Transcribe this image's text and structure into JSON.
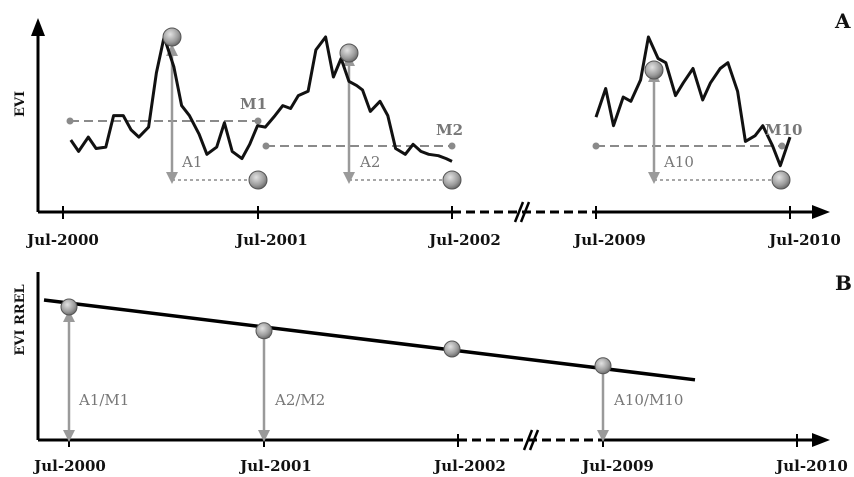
{
  "chart_data": [
    {
      "panel": "A",
      "type": "line",
      "ylabel": "EVI",
      "x_ticks": [
        "Jul-2000",
        "Jul-2001",
        "Jul-2002",
        "Jul-2009",
        "Jul-2010"
      ],
      "axis_break_between": [
        "Jul-2002",
        "Jul-2009"
      ],
      "y_scale": "relative (no tick values shown)",
      "series": [
        {
          "segment": "Jul-2000 to Jul-2002",
          "t": [
            0.04,
            0.08,
            0.13,
            0.17,
            0.22,
            0.26,
            0.31,
            0.35,
            0.39,
            0.44,
            0.48,
            0.52,
            0.57,
            0.61,
            0.65,
            0.7,
            0.74,
            0.79,
            0.83,
            0.87,
            0.92,
            0.96,
            1.0,
            1.04,
            1.09,
            1.13,
            1.17,
            1.21,
            1.26,
            1.3,
            1.35,
            1.39,
            1.43,
            1.47,
            1.51,
            1.54,
            1.58,
            1.63,
            1.67,
            1.71,
            1.76,
            1.8,
            1.84,
            1.88,
            1.93,
            1.97,
            2.0
          ],
          "evi": [
            0.28,
            0.2,
            0.3,
            0.22,
            0.23,
            0.45,
            0.45,
            0.35,
            0.3,
            0.37,
            0.75,
            1.0,
            0.79,
            0.52,
            0.45,
            0.32,
            0.18,
            0.23,
            0.4,
            0.2,
            0.15,
            0.25,
            0.38,
            0.37,
            0.45,
            0.52,
            0.5,
            0.59,
            0.62,
            0.91,
            1.0,
            0.72,
            0.85,
            0.69,
            0.66,
            0.63,
            0.48,
            0.55,
            0.45,
            0.22,
            0.18,
            0.25,
            0.2,
            0.18,
            0.17,
            0.15,
            0.13
          ]
        },
        {
          "segment": "Jul-2009 to Jul-2010",
          "t": [
            9.0,
            9.05,
            9.09,
            9.14,
            9.18,
            9.23,
            9.27,
            9.32,
            9.36,
            9.41,
            9.45,
            9.5,
            9.55,
            9.59,
            9.64,
            9.68,
            9.73,
            9.77,
            9.82,
            9.86,
            9.91,
            9.95,
            10.0
          ],
          "evi": [
            0.44,
            0.64,
            0.38,
            0.58,
            0.55,
            0.7,
            1.0,
            0.85,
            0.82,
            0.59,
            0.68,
            0.78,
            0.56,
            0.68,
            0.78,
            0.82,
            0.62,
            0.27,
            0.31,
            0.38,
            0.24,
            0.1,
            0.3
          ]
        }
      ],
      "annotations": [
        {
          "label": "M1",
          "kind": "mean",
          "year": 1
        },
        {
          "label": "A1",
          "kind": "amplitude",
          "year": 1
        },
        {
          "label": "M2",
          "kind": "mean",
          "year": 2
        },
        {
          "label": "A2",
          "kind": "amplitude",
          "year": 2
        },
        {
          "label": "M10",
          "kind": "mean",
          "year": 10
        },
        {
          "label": "A10",
          "kind": "amplitude",
          "year": 10
        }
      ]
    },
    {
      "panel": "B",
      "type": "scatter",
      "ylabel": "EVI RREL",
      "x_ticks": [
        "Jul-2000",
        "Jul-2001",
        "Jul-2002",
        "Jul-2009",
        "Jul-2010"
      ],
      "axis_break_between": [
        "Jul-2002",
        "Jul-2009"
      ],
      "points": [
        {
          "x": "Jul-2000",
          "value": 0.95,
          "label": "A1/M1"
        },
        {
          "x": "Jul-2001",
          "value": 0.78,
          "label": "A2/M2"
        },
        {
          "x": "Jul-2002",
          "value": 0.65,
          "label": ""
        },
        {
          "x": "Jul-2009",
          "value": 0.53,
          "label": "A10/M10"
        }
      ],
      "trend_line": {
        "start_value": 1.0,
        "end_value": 0.43
      },
      "trend": "decreasing"
    }
  ],
  "panel_labels": {
    "a": "A",
    "b": "B"
  },
  "axis_titles": {
    "a_y": "EVI",
    "b_y": "EVI RREL"
  },
  "annotations": {
    "m1": "M1",
    "m2": "M2",
    "m10": "M10",
    "a1": "A1",
    "a2": "A2",
    "a10": "A10",
    "ratio1": "A1/M1",
    "ratio2": "A2/M2",
    "ratio10": "A10/M10"
  },
  "ticks": {
    "t0": "Jul-2000",
    "t1": "Jul-2001",
    "t2": "Jul-2002",
    "t9": "Jul-2009",
    "t10": "Jul-2010"
  }
}
